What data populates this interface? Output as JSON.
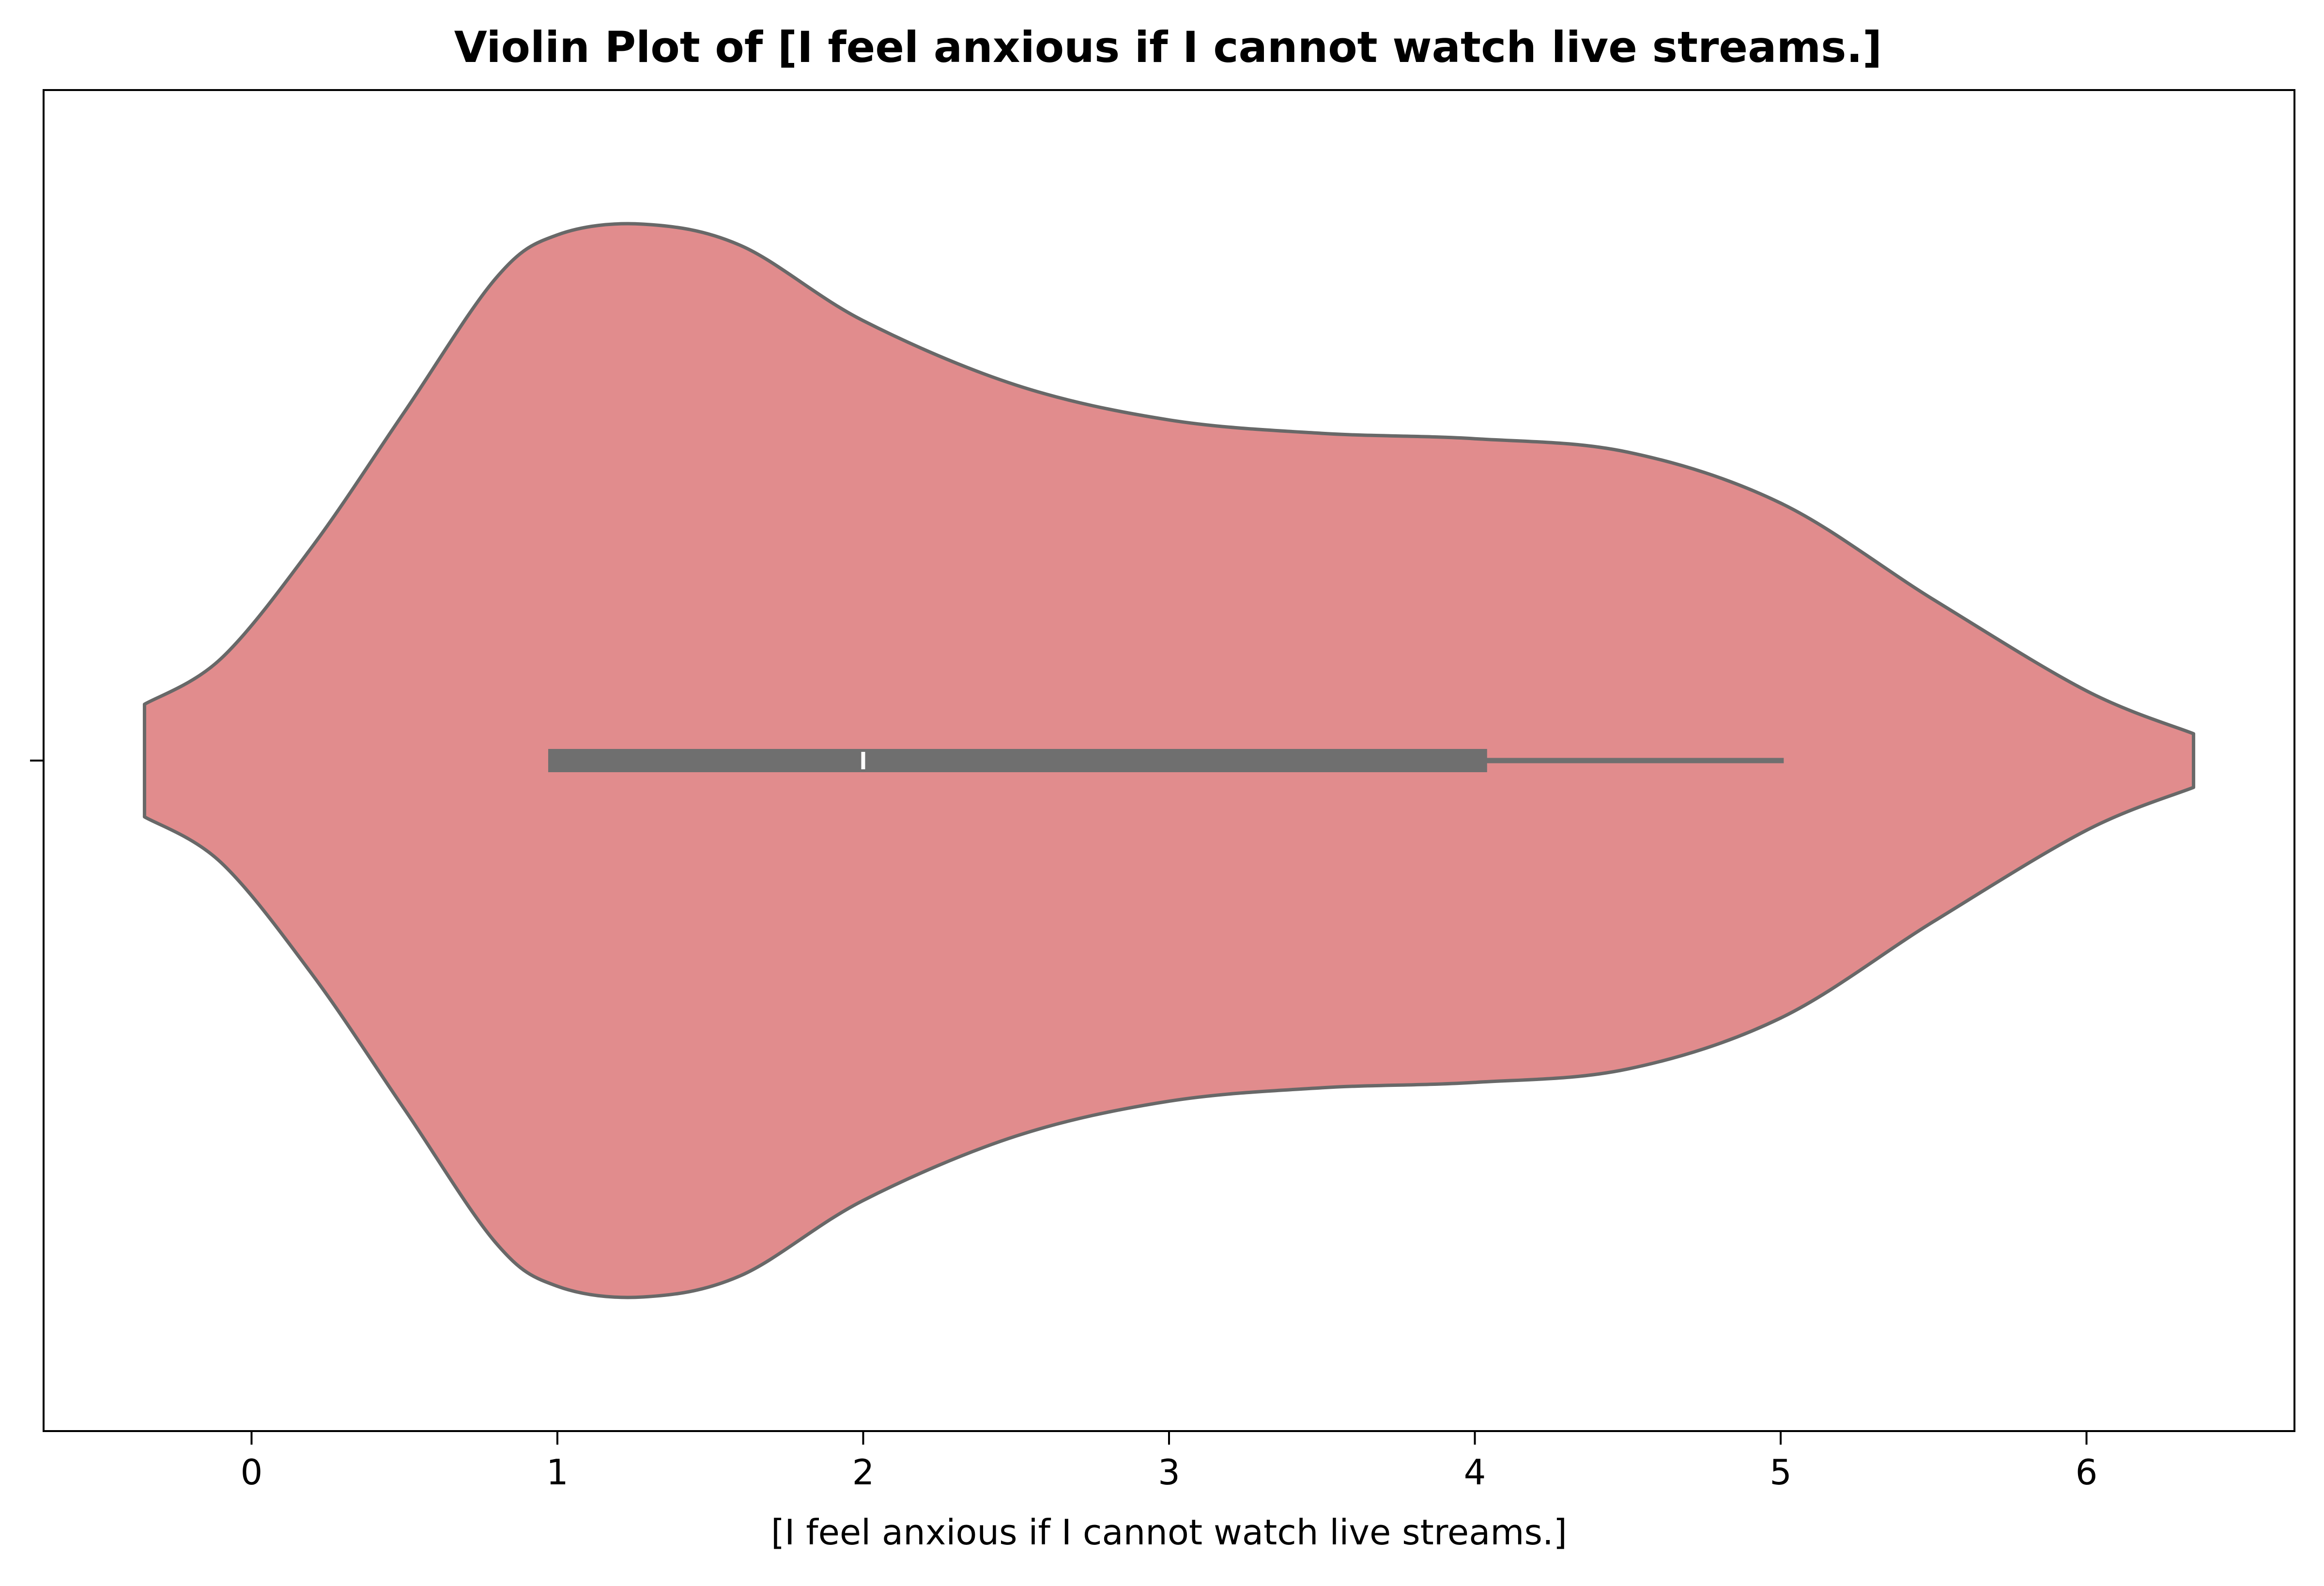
{
  "chart_data": {
    "type": "violin",
    "title": "Violin Plot of [I feel anxious if I cannot watch live streams.]",
    "xlabel": "[I feel anxious if I cannot watch live streams.]",
    "ylabel": "",
    "xlim": [
      -0.68,
      6.68
    ],
    "xticks": [
      0,
      1,
      2,
      3,
      4,
      5,
      6
    ],
    "grid": false,
    "legend": "none",
    "violin": {
      "fill_color": "#e18c8d",
      "edge_color": "#686868",
      "kde_range": [
        -0.35,
        6.35
      ],
      "density_profile": [
        {
          "x": -0.35,
          "w": 0.105
        },
        {
          "x": -0.1,
          "w": 0.19
        },
        {
          "x": 0.2,
          "w": 0.4
        },
        {
          "x": 0.5,
          "w": 0.65
        },
        {
          "x": 0.8,
          "w": 0.9
        },
        {
          "x": 1.0,
          "w": 0.98
        },
        {
          "x": 1.28,
          "w": 1.0
        },
        {
          "x": 1.6,
          "w": 0.96
        },
        {
          "x": 2.0,
          "w": 0.82
        },
        {
          "x": 2.5,
          "w": 0.7
        },
        {
          "x": 3.0,
          "w": 0.635
        },
        {
          "x": 3.5,
          "w": 0.61
        },
        {
          "x": 4.0,
          "w": 0.6
        },
        {
          "x": 4.5,
          "w": 0.575
        },
        {
          "x": 5.0,
          "w": 0.48
        },
        {
          "x": 5.5,
          "w": 0.3
        },
        {
          "x": 6.0,
          "w": 0.13
        },
        {
          "x": 6.35,
          "w": 0.05
        }
      ],
      "box": {
        "q1": 0.97,
        "median": 2.0,
        "q3": 4.04,
        "whisker_low": 0.97,
        "whisker_high": 5.01,
        "color": "#6f6f6f",
        "median_color": "#ffffff"
      }
    }
  }
}
